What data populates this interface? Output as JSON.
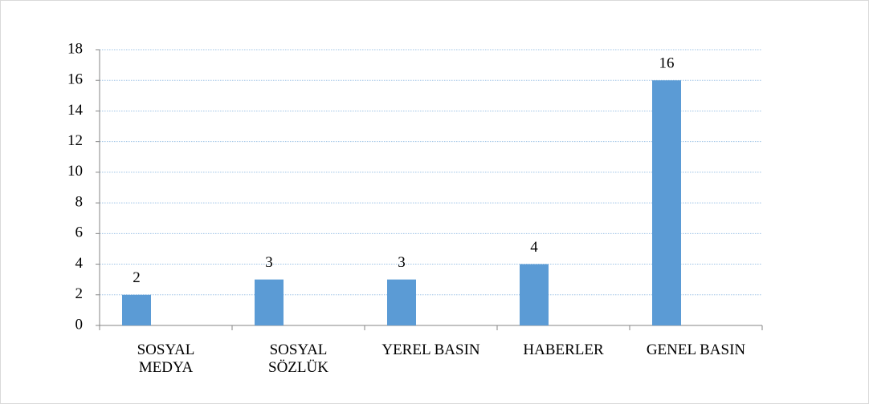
{
  "chart_data": {
    "type": "bar",
    "categories": [
      "SOSYAL MEDYA",
      "SOSYAL SÖZLÜK",
      "YEREL BASIN",
      "HABERLER",
      "GENEL BASIN"
    ],
    "values": [
      2,
      3,
      3,
      4,
      16
    ],
    "color": "#5b9bd5",
    "ylim": [
      0,
      18
    ],
    "yticks": [
      0,
      2,
      4,
      6,
      8,
      10,
      12,
      14,
      16,
      18
    ],
    "grid": true
  }
}
